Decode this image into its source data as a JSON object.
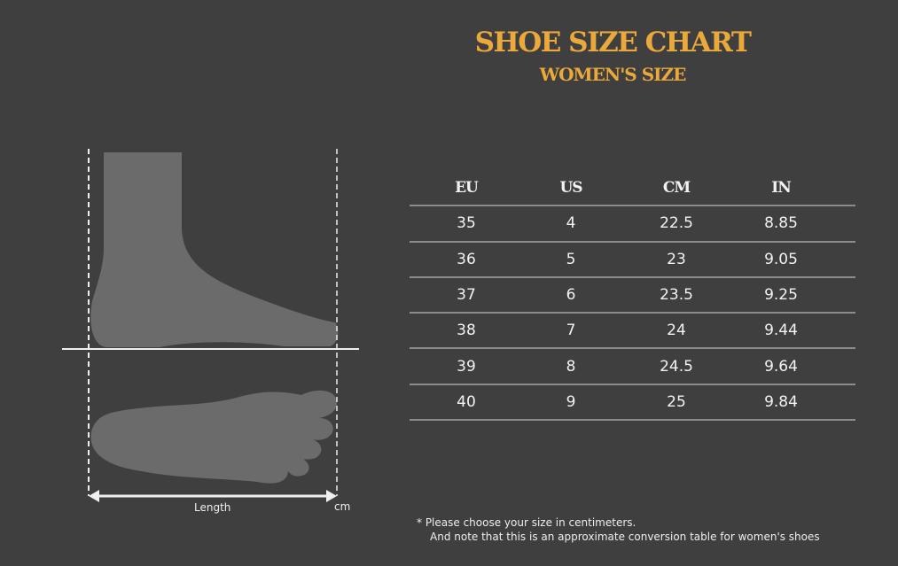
{
  "header": {
    "title": "SHOE SIZE CHART",
    "subtitle": "WOMEN'S SIZE"
  },
  "colors": {
    "background": "#3f3f3f",
    "accent": "#eaa93a",
    "foot": "#6b6b6b"
  },
  "diagram": {
    "length_label": "Length",
    "unit_label": "cm"
  },
  "table": {
    "columns": [
      "EU",
      "US",
      "CM",
      "IN"
    ],
    "rows": [
      [
        "35",
        "4",
        "22.5",
        "8.85"
      ],
      [
        "36",
        "5",
        "23",
        "9.05"
      ],
      [
        "37",
        "6",
        "23.5",
        "9.25"
      ],
      [
        "38",
        "7",
        "24",
        "9.44"
      ],
      [
        "39",
        "8",
        "24.5",
        "9.64"
      ],
      [
        "40",
        "9",
        "25",
        "9.84"
      ]
    ]
  },
  "footnote": {
    "line1": "*   Please choose your size in centimeters.",
    "line2": "And note that this is an approximate conversion table for women's shoes"
  }
}
